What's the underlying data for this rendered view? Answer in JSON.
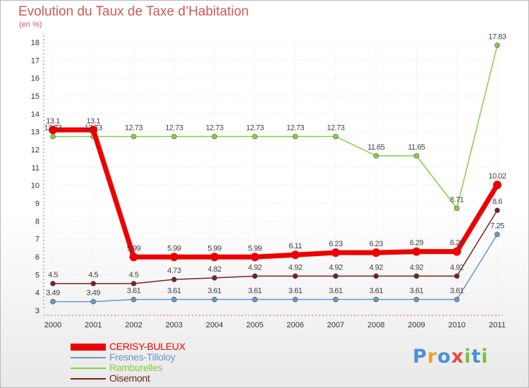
{
  "title": "Evolution du Taux de Taxe d’Habitation",
  "unit_label": "(en %)",
  "logo": {
    "letters": [
      "P",
      "r",
      "o",
      "x",
      "i",
      "t",
      "i"
    ],
    "colors": [
      "#4a90d9",
      "#f0a030",
      "#4a90d9",
      "#e84c3d",
      "#7bc043",
      "#4a90d9",
      "#7bc043"
    ]
  },
  "chart_data": {
    "type": "line",
    "title": "Evolution du Taux de Taxe d’Habitation",
    "ylabel": "(en %)",
    "xlabel": "",
    "ylim": [
      3,
      18
    ],
    "yticks": [
      3,
      4,
      5,
      6,
      7,
      8,
      9,
      10,
      11,
      12,
      13,
      14,
      15,
      16,
      17,
      18
    ],
    "categories": [
      "2000",
      "2001",
      "2002",
      "2003",
      "2004",
      "2005",
      "2006",
      "2007",
      "2008",
      "2009",
      "2010",
      "2011"
    ],
    "series": [
      {
        "name": "CERISY-BULEUX",
        "color": "#ee0000",
        "values": [
          13.1,
          13.1,
          5.99,
          5.99,
          5.99,
          5.99,
          6.11,
          6.23,
          6.23,
          6.29,
          6.29,
          10.02
        ],
        "labels": [
          "13.1",
          "13.1",
          "5.99",
          "5.99",
          "5.99",
          "5.99",
          "6.11",
          "6.23",
          "6.23",
          "6.29",
          "6.29",
          "10.02"
        ]
      },
      {
        "name": "Fresnes-Tilloloy",
        "color": "#6699cc",
        "values": [
          3.49,
          3.49,
          3.61,
          3.61,
          3.61,
          3.61,
          3.61,
          3.61,
          3.61,
          3.61,
          3.61,
          7.25
        ],
        "labels": [
          "3.49",
          "3.49",
          "3.61",
          "3.61",
          "3.61",
          "3.61",
          "3.61",
          "3.61",
          "3.61",
          "3.61",
          "3.61",
          "7.25"
        ]
      },
      {
        "name": "Ramburelles",
        "color": "#88cc44",
        "values": [
          12.73,
          12.73,
          12.73,
          12.73,
          12.73,
          12.73,
          12.73,
          12.73,
          11.65,
          11.65,
          8.71,
          17.83
        ],
        "labels": [
          "12.73",
          "12.73",
          "12.73",
          "12.73",
          "12.73",
          "12.73",
          "12.73",
          "12.73",
          "11.65",
          "11.65",
          "8.71",
          "17.83"
        ]
      },
      {
        "name": "Oisemont",
        "color": "#772222",
        "values": [
          4.5,
          4.5,
          4.5,
          4.73,
          4.82,
          4.92,
          4.92,
          4.92,
          4.92,
          4.92,
          4.92,
          8.6
        ],
        "labels": [
          "4.5",
          "4.5",
          "4.5",
          "4.73",
          "4.82",
          "4.92",
          "4.92",
          "4.92",
          "4.92",
          "4.92",
          "4.92",
          "8.6"
        ]
      }
    ]
  }
}
